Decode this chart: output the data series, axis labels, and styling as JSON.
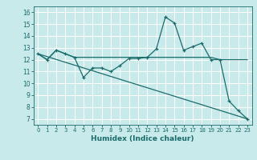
{
  "title": "",
  "xlabel": "Humidex (Indice chaleur)",
  "bg_color": "#c8eaea",
  "grid_color": "#ffffff",
  "line_color": "#1a6b6b",
  "xlim": [
    -0.5,
    23.5
  ],
  "ylim": [
    6.5,
    16.5
  ],
  "xticks": [
    0,
    1,
    2,
    3,
    4,
    5,
    6,
    7,
    8,
    9,
    10,
    11,
    12,
    13,
    14,
    15,
    16,
    17,
    18,
    19,
    20,
    21,
    22,
    23
  ],
  "yticks": [
    7,
    8,
    9,
    10,
    11,
    12,
    13,
    14,
    15,
    16
  ],
  "line1_x": [
    0,
    1,
    2,
    3,
    4,
    5,
    6,
    7,
    8,
    9,
    10,
    11,
    12,
    13,
    14,
    15,
    16,
    17,
    18,
    19,
    20,
    21,
    22,
    23
  ],
  "line1_y": [
    12.5,
    12.0,
    12.8,
    12.5,
    12.2,
    10.5,
    11.3,
    11.3,
    11.0,
    11.5,
    12.1,
    12.1,
    12.2,
    12.9,
    15.6,
    15.1,
    12.8,
    13.1,
    13.4,
    12.0,
    12.0,
    8.5,
    7.7,
    7.0
  ],
  "line2_x": [
    0,
    1,
    2,
    3,
    4,
    5,
    6,
    7,
    8,
    9,
    10,
    11,
    12,
    13,
    14,
    15,
    16,
    17,
    18,
    19,
    20,
    21,
    22,
    23
  ],
  "line2_y": [
    12.5,
    12.0,
    12.8,
    12.5,
    12.2,
    12.2,
    12.2,
    12.2,
    12.2,
    12.2,
    12.2,
    12.2,
    12.2,
    12.2,
    12.2,
    12.2,
    12.2,
    12.2,
    12.2,
    12.2,
    12.0,
    12.0,
    12.0,
    12.0
  ],
  "line3_x": [
    0,
    23
  ],
  "line3_y": [
    12.5,
    7.0
  ]
}
